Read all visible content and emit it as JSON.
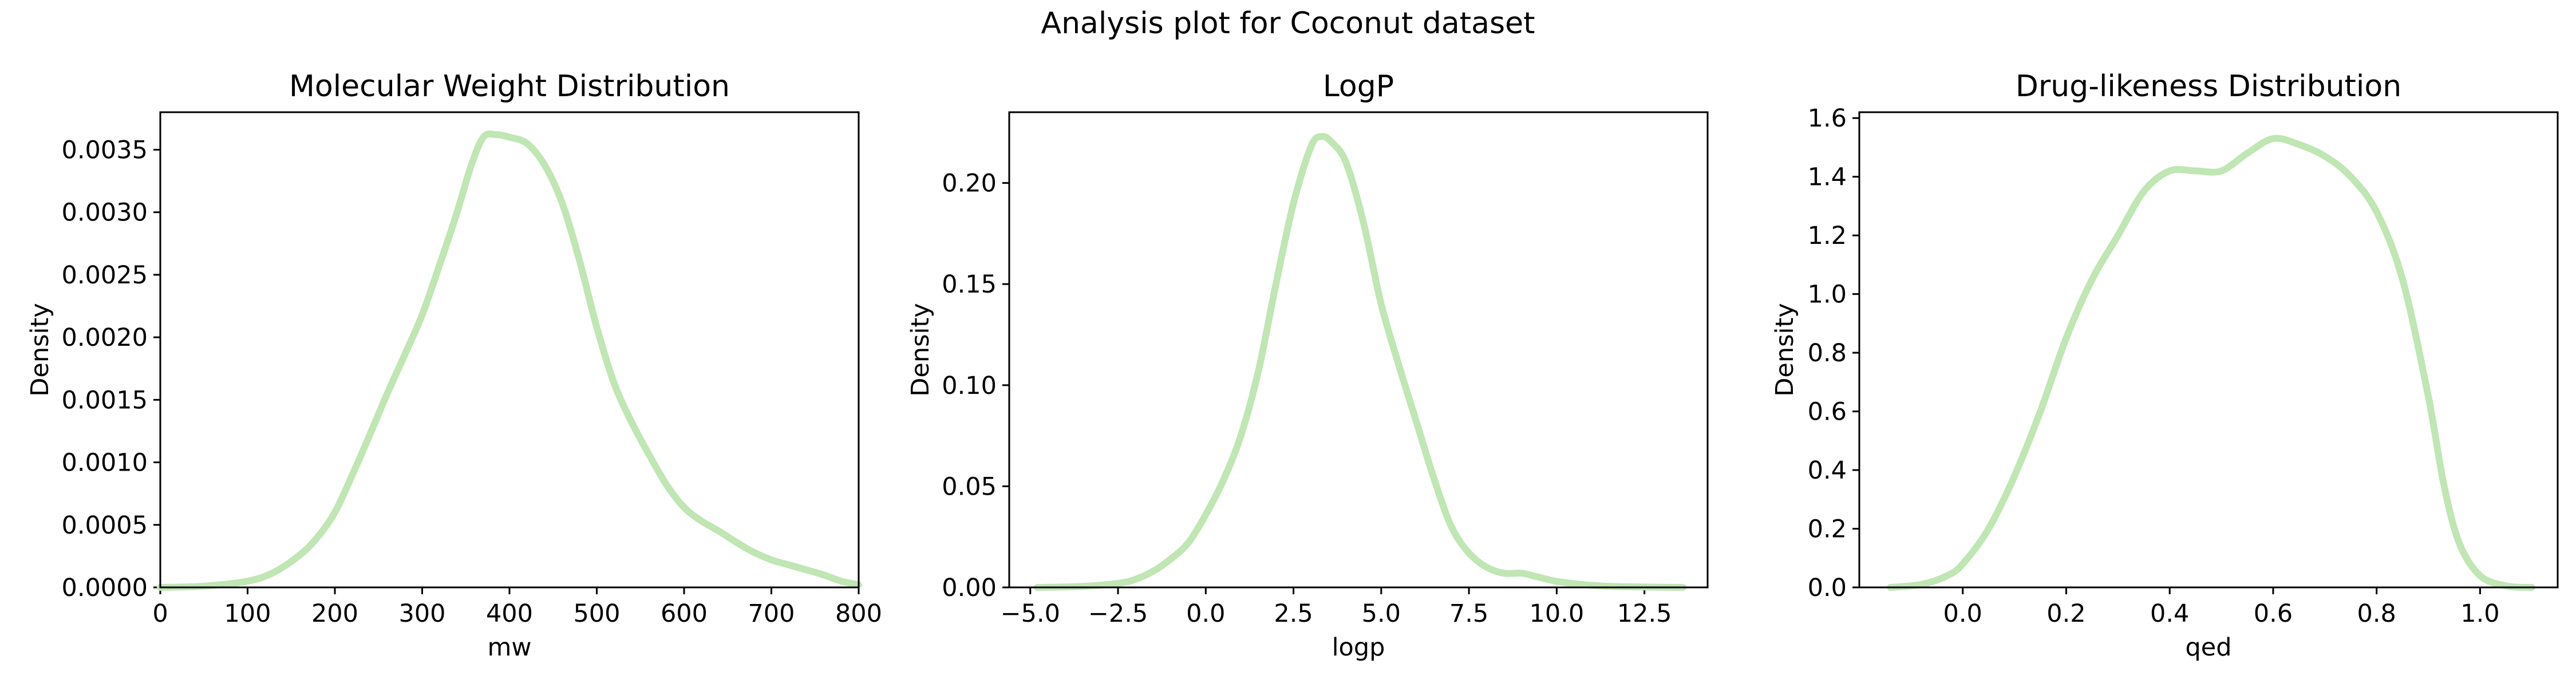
{
  "figure": {
    "suptitle": "Analysis plot for Coconut dataset",
    "line_color": "#bfe6b3"
  },
  "chart_data": [
    {
      "type": "line",
      "title": "Molecular Weight Distribution",
      "xlabel": "mw",
      "ylabel": "Density",
      "xlim": [
        0,
        800
      ],
      "ylim": [
        0,
        0.0038
      ],
      "xticks": [
        0,
        100,
        200,
        300,
        400,
        500,
        600,
        700,
        800
      ],
      "xtick_labels": [
        "0",
        "100",
        "200",
        "300",
        "400",
        "500",
        "600",
        "700",
        "800"
      ],
      "yticks": [
        0,
        0.0005,
        0.001,
        0.0015,
        0.002,
        0.0025,
        0.003,
        0.0035
      ],
      "ytick_labels": [
        "0.0000",
        "0.0005",
        "0.0010",
        "0.0015",
        "0.0020",
        "0.0025",
        "0.0030",
        "0.0035"
      ],
      "grid": false,
      "series": [
        {
          "x": [
            0,
            50,
            100,
            130,
            160,
            180,
            200,
            220,
            240,
            260,
            280,
            300,
            320,
            340,
            355,
            370,
            385,
            400,
            420,
            440,
            460,
            480,
            500,
            520,
            540,
            560,
            580,
            600,
            620,
            640,
            660,
            680,
            700,
            720,
            740,
            760,
            780,
            800
          ],
          "y": [
            0,
            1e-05,
            5e-05,
            0.00012,
            0.00026,
            0.0004,
            0.0006,
            0.0009,
            0.00122,
            0.00155,
            0.00186,
            0.00218,
            0.00258,
            0.003,
            0.00335,
            0.0036,
            0.00362,
            0.0036,
            0.00355,
            0.00338,
            0.00308,
            0.00262,
            0.00208,
            0.00163,
            0.00132,
            0.00106,
            0.00082,
            0.00064,
            0.00053,
            0.00045,
            0.00036,
            0.00028,
            0.00022,
            0.00018,
            0.00014,
            0.0001,
            5e-05,
            2e-05
          ]
        }
      ]
    },
    {
      "type": "line",
      "title": "LogP",
      "xlabel": "logp",
      "ylabel": "Density",
      "xlim": [
        -5.6,
        14.3
      ],
      "ylim": [
        0,
        0.235
      ],
      "xticks": [
        -5,
        -2.5,
        0,
        2.5,
        5,
        7.5,
        10,
        12.5
      ],
      "xtick_labels": [
        "−5.0",
        "−2.5",
        "0.0",
        "2.5",
        "5.0",
        "7.5",
        "10.0",
        "12.5"
      ],
      "yticks": [
        0,
        0.05,
        0.1,
        0.15,
        0.2
      ],
      "ytick_labels": [
        "0.00",
        "0.05",
        "0.10",
        "0.15",
        "0.20"
      ],
      "grid": false,
      "series": [
        {
          "x": [
            -4.8,
            -3.5,
            -2.5,
            -2.0,
            -1.5,
            -1.0,
            -0.5,
            0.0,
            0.5,
            1.0,
            1.5,
            2.0,
            2.5,
            3.0,
            3.3,
            3.6,
            4.0,
            4.5,
            5.0,
            5.5,
            6.0,
            6.5,
            7.0,
            7.5,
            8.0,
            8.5,
            9.0,
            9.5,
            10.0,
            11.0,
            12.0,
            13.6
          ],
          "y": [
            0,
            0.0005,
            0.002,
            0.004,
            0.008,
            0.014,
            0.022,
            0.036,
            0.053,
            0.075,
            0.107,
            0.15,
            0.19,
            0.218,
            0.223,
            0.22,
            0.21,
            0.18,
            0.14,
            0.11,
            0.082,
            0.054,
            0.03,
            0.017,
            0.01,
            0.007,
            0.007,
            0.005,
            0.003,
            0.001,
            0.0003,
            0
          ]
        }
      ]
    },
    {
      "type": "line",
      "title": "Drug-likeness Distribution",
      "xlabel": "qed",
      "ylabel": "Density",
      "xlim": [
        -0.2,
        1.15
      ],
      "ylim": [
        0,
        1.62
      ],
      "xticks": [
        0,
        0.2,
        0.4,
        0.6,
        0.8,
        1.0
      ],
      "xtick_labels": [
        "0.0",
        "0.2",
        "0.4",
        "0.6",
        "0.8",
        "1.0"
      ],
      "yticks": [
        0,
        0.2,
        0.4,
        0.6,
        0.8,
        1.0,
        1.2,
        1.4,
        1.6
      ],
      "ytick_labels": [
        "0.0",
        "0.2",
        "0.4",
        "0.6",
        "0.8",
        "1.0",
        "1.2",
        "1.4",
        "1.6"
      ],
      "grid": false,
      "series": [
        {
          "x": [
            -0.14,
            -0.08,
            -0.03,
            0.0,
            0.05,
            0.1,
            0.15,
            0.2,
            0.25,
            0.3,
            0.35,
            0.4,
            0.45,
            0.5,
            0.55,
            0.6,
            0.65,
            0.7,
            0.75,
            0.8,
            0.85,
            0.9,
            0.93,
            0.96,
            1.0,
            1.05,
            1.1
          ],
          "y": [
            0,
            0.01,
            0.04,
            0.08,
            0.2,
            0.38,
            0.6,
            0.85,
            1.05,
            1.2,
            1.35,
            1.42,
            1.42,
            1.42,
            1.48,
            1.53,
            1.51,
            1.47,
            1.4,
            1.28,
            1.05,
            0.65,
            0.35,
            0.15,
            0.04,
            0.005,
            0
          ]
        }
      ]
    }
  ]
}
